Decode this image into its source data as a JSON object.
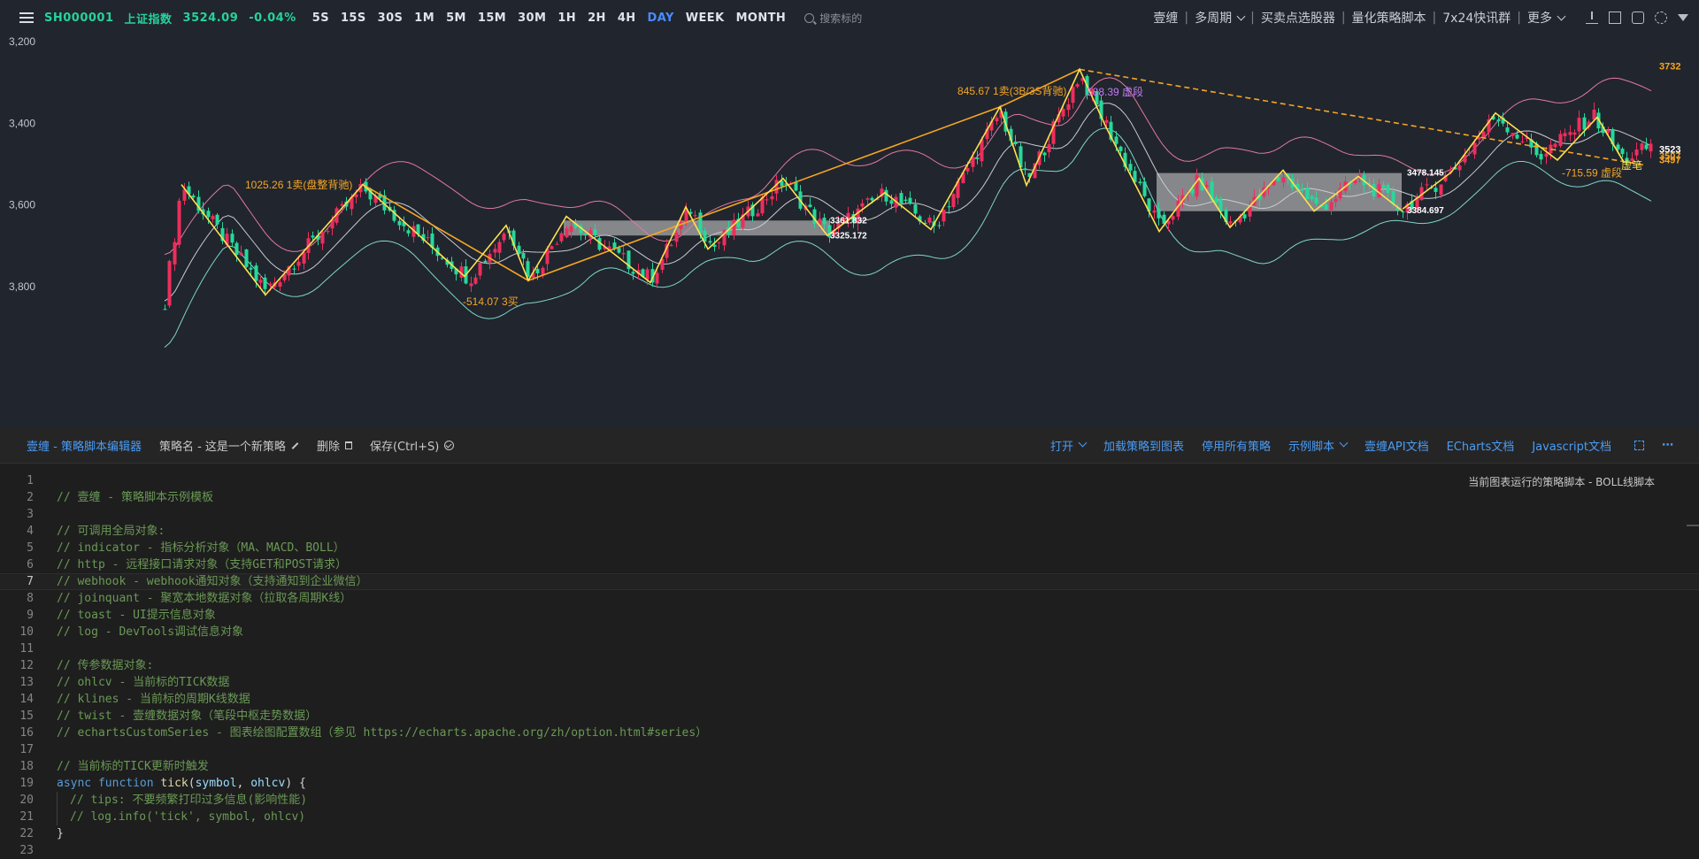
{
  "toolbar": {
    "menu_icon": "sliders-icon",
    "symbol_code": "SH000001",
    "symbol_name": "上证指数",
    "price": "3524.09",
    "change": "-0.04%",
    "periods": [
      "5S",
      "15S",
      "30S",
      "1M",
      "5M",
      "15M",
      "30M",
      "1H",
      "2H",
      "4H",
      "DAY",
      "WEEK",
      "MONTH"
    ],
    "active_period": "DAY",
    "search_placeholder": "搜索标的",
    "right_links": [
      "壹缠",
      "多周期",
      "买卖点选股器",
      "量化策略脚本",
      "7x24快讯群",
      "更多"
    ],
    "right_icons": [
      "download-icon",
      "crop-icon",
      "screenshot-icon",
      "settings-icon",
      "collapse-icon"
    ]
  },
  "chart": {
    "y_ticks": [
      "3,800",
      "3,600",
      "3,400",
      "3,200"
    ],
    "price_tags": [
      {
        "text": "3732",
        "color": "#f5a623"
      },
      {
        "text": "3523",
        "color": "#ffffff"
      },
      {
        "text": "3507",
        "color": "#f5a623"
      },
      {
        "text": "3497",
        "color": "#f5a623"
      }
    ],
    "annotations": [
      {
        "text": "1025.26 1卖(盘整背驰)",
        "color": "#f5a623"
      },
      {
        "text": "-514.07 3买",
        "color": "#f5a623"
      },
      {
        "text": "845.67 1卖(3B/3S背驰)",
        "color": "#f5a623"
      },
      {
        "text": "588.39 虚段",
        "color": "#c57cf5"
      },
      {
        "text": "-715.59 虚段",
        "color": "#f5a623"
      },
      {
        "text": "虚笔",
        "color": "#ffe14d"
      }
    ],
    "zs_labels": [
      "3361.832",
      "3325.172",
      "3478.145",
      "3384.697"
    ],
    "colors": {
      "up": "#ef2d5c",
      "down": "#26d99a",
      "stroke": "#ffe14d",
      "segment": "#f5a623",
      "boll_upper": "#e07a9f",
      "boll_mid": "#c9ccd1",
      "boll_lower": "#7fd6c6"
    }
  },
  "chart_data": {
    "type": "candlestick",
    "title": "",
    "ylim": [
      3130,
      3820
    ],
    "y_ticks": [
      3200,
      3400,
      3600,
      3800
    ],
    "series_overlays": [
      "BOLL upper",
      "BOLL mid",
      "BOLL lower",
      "笔",
      "线段",
      "中枢"
    ],
    "pivot_zones": [
      {
        "high": 3361.832,
        "low": 3325.172
      },
      {
        "high": 3478.145,
        "low": 3384.697
      }
    ],
    "last_price": 3523,
    "levels": [
      3732,
      3507,
      3497
    ]
  },
  "editor": {
    "title": "壹缠 - 策略脚本编辑器",
    "strategy_name": "策略名 - 这是一个新策略",
    "delete_label": "删除",
    "save_label": "保存(Ctrl+S)",
    "open_label": "打开",
    "load_label": "加载策略到图表",
    "disable_label": "停用所有策略",
    "examples_label": "示例脚本",
    "api_doc": "壹缠API文档",
    "echarts_doc": "ECharts文档",
    "js_doc": "Javascript文档",
    "status": "当前图表运行的策略脚本 - BOLL线脚本",
    "current_line": 7,
    "lines": [
      {
        "n": "1",
        "segs": []
      },
      {
        "n": "2",
        "segs": [
          {
            "c": "c-comment",
            "t": "// 壹缠 - 策略脚本示例模板"
          }
        ]
      },
      {
        "n": "3",
        "segs": []
      },
      {
        "n": "4",
        "segs": [
          {
            "c": "c-comment",
            "t": "// 可调用全局对象:"
          }
        ]
      },
      {
        "n": "5",
        "segs": [
          {
            "c": "c-comment",
            "t": "// indicator - 指标分析对象（MA、MACD、BOLL）"
          }
        ]
      },
      {
        "n": "6",
        "segs": [
          {
            "c": "c-comment",
            "t": "// http - 远程接口请求对象（支持GET和POST请求）"
          }
        ]
      },
      {
        "n": "7",
        "segs": [
          {
            "c": "c-comment",
            "t": "// webhook - webhook通知对象（支持通知到企业微信）"
          }
        ]
      },
      {
        "n": "8",
        "segs": [
          {
            "c": "c-comment",
            "t": "// joinquant - 聚宽本地数据对象（拉取各周期K线）"
          }
        ]
      },
      {
        "n": "9",
        "segs": [
          {
            "c": "c-comment",
            "t": "// toast - UI提示信息对象"
          }
        ]
      },
      {
        "n": "10",
        "segs": [
          {
            "c": "c-comment",
            "t": "// log - DevTools调试信息对象"
          }
        ]
      },
      {
        "n": "11",
        "segs": []
      },
      {
        "n": "12",
        "segs": [
          {
            "c": "c-comment",
            "t": "// 传参数据对象:"
          }
        ]
      },
      {
        "n": "13",
        "segs": [
          {
            "c": "c-comment",
            "t": "// ohlcv - 当前标的TICK数据"
          }
        ]
      },
      {
        "n": "14",
        "segs": [
          {
            "c": "c-comment",
            "t": "// klines - 当前标的周期K线数据"
          }
        ]
      },
      {
        "n": "15",
        "segs": [
          {
            "c": "c-comment",
            "t": "// twist - 壹缠数据对象（笔段中枢走势数据）"
          }
        ]
      },
      {
        "n": "16",
        "segs": [
          {
            "c": "c-comment",
            "t": "// echartsCustomSeries - 图表绘图配置数组（参见 https://echarts.apache.org/zh/option.html#series）"
          }
        ]
      },
      {
        "n": "17",
        "segs": []
      },
      {
        "n": "18",
        "segs": [
          {
            "c": "c-comment",
            "t": "// 当前标的TICK更新时触发"
          }
        ]
      },
      {
        "n": "19",
        "segs": [
          {
            "c": "c-kw",
            "t": "async"
          },
          {
            "c": "c-plain",
            "t": " "
          },
          {
            "c": "c-kw",
            "t": "function"
          },
          {
            "c": "c-plain",
            "t": " "
          },
          {
            "c": "c-fn",
            "t": "tick"
          },
          {
            "c": "c-plain",
            "t": "("
          },
          {
            "c": "c-param",
            "t": "symbol"
          },
          {
            "c": "c-plain",
            "t": ", "
          },
          {
            "c": "c-param",
            "t": "ohlcv"
          },
          {
            "c": "c-plain",
            "t": ") {"
          }
        ]
      },
      {
        "n": "20",
        "indent": true,
        "segs": [
          {
            "c": "c-comment",
            "t": "// tips: 不要频繁打印过多信息(影响性能)"
          }
        ]
      },
      {
        "n": "21",
        "indent": true,
        "segs": [
          {
            "c": "c-comment",
            "t": "// log.info('tick', symbol, ohlcv)"
          }
        ]
      },
      {
        "n": "22",
        "segs": [
          {
            "c": "c-plain",
            "t": "}"
          }
        ]
      },
      {
        "n": "23",
        "segs": []
      }
    ]
  }
}
